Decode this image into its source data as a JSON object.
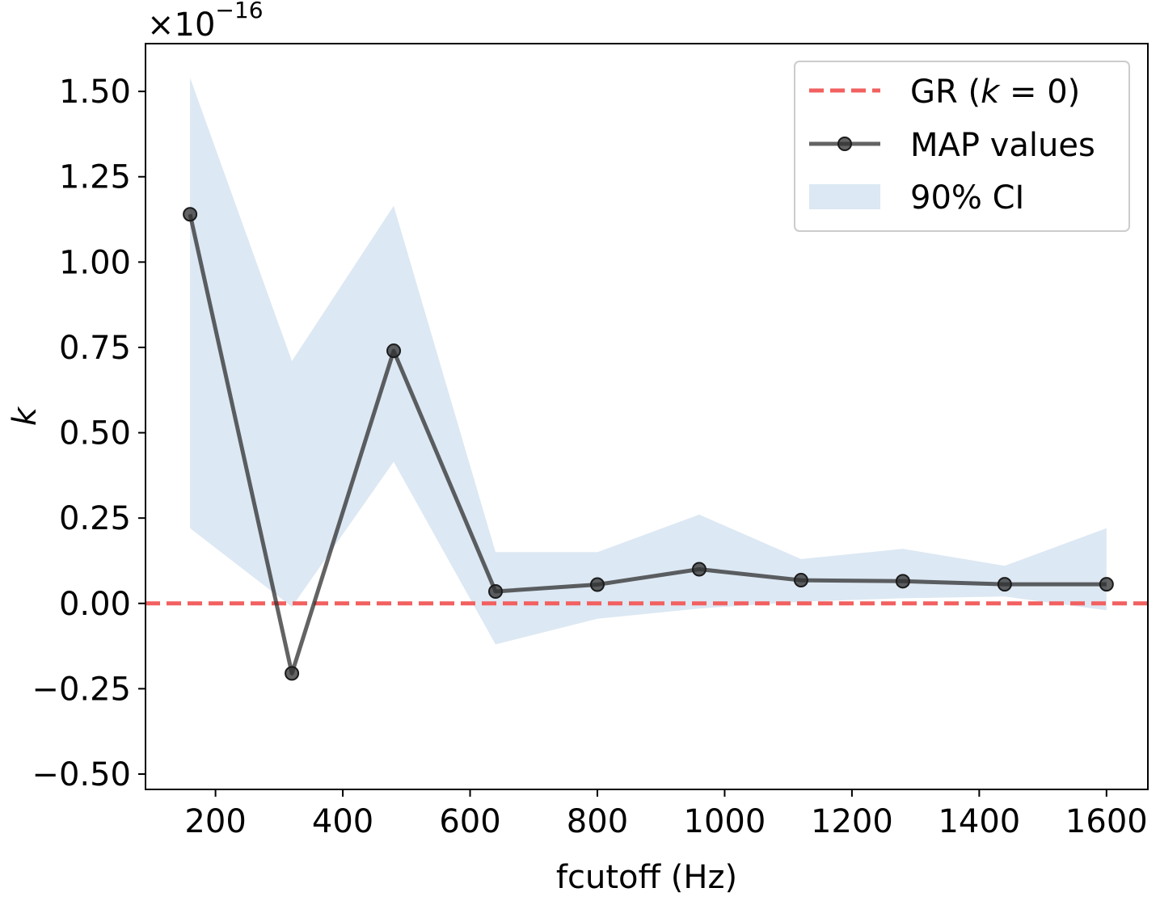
{
  "chart_data": {
    "type": "line",
    "xlabel": "fcutoff (Hz)",
    "ylabel": "k",
    "y_multiplier": {
      "base": "×10",
      "exponent": "−16"
    },
    "xlim": [
      90,
      1665
    ],
    "ylim": [
      -0.545,
      1.64
    ],
    "x_ticks": [
      200,
      400,
      600,
      800,
      1000,
      1200,
      1400,
      1600
    ],
    "x_tick_labels": [
      "200",
      "400",
      "600",
      "800",
      "1000",
      "1200",
      "1400",
      "1600"
    ],
    "y_ticks": [
      -0.5,
      -0.25,
      0,
      0.25,
      0.5,
      0.75,
      1.0,
      1.25,
      1.5
    ],
    "y_tick_labels": [
      "−0.50",
      "−0.25",
      "0.00",
      "0.25",
      "0.50",
      "0.75",
      "1.00",
      "1.25",
      "1.50"
    ],
    "grid": false,
    "legend_position": "top-right",
    "x": [
      160,
      320,
      480,
      640,
      800,
      960,
      1120,
      1280,
      1440,
      1600
    ],
    "series": [
      {
        "name": "MAP values",
        "kind": "line-marker",
        "color": "#2f2f2f",
        "values": [
          1.14,
          -0.205,
          0.74,
          0.035,
          0.055,
          0.1,
          0.068,
          0.065,
          0.056,
          0.056
        ]
      },
      {
        "name": "90% CI",
        "kind": "band",
        "color": "#dce8f3",
        "lower": [
          0.22,
          -0.01,
          0.415,
          -0.12,
          -0.045,
          -0.015,
          0.005,
          0.015,
          0.02,
          -0.02
        ],
        "upper": [
          1.54,
          0.71,
          1.165,
          0.15,
          0.15,
          0.26,
          0.13,
          0.16,
          0.11,
          0.22
        ]
      },
      {
        "name": "GR (k = 0)",
        "kind": "hline",
        "color": "#f26060",
        "value": 0
      }
    ],
    "legend": [
      {
        "key": "gr",
        "label": "GR (",
        "italic": "k",
        "suffix": " = 0)"
      },
      {
        "key": "map",
        "label": "MAP values"
      },
      {
        "key": "ci",
        "label": "90% CI"
      }
    ]
  }
}
